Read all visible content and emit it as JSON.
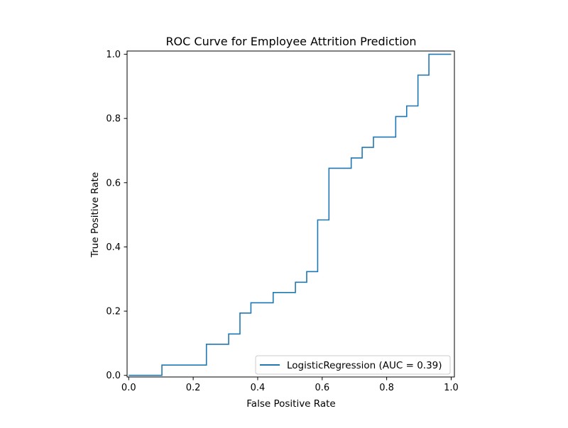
{
  "chart_data": {
    "type": "line",
    "title": "ROC Curve for Employee Attrition Prediction",
    "xlabel": "False Positive Rate",
    "ylabel": "True Positive Rate",
    "xlim": [
      -0.005,
      1.01
    ],
    "ylim": [
      -0.005,
      1.01
    ],
    "xticks": [
      {
        "value": 0.0,
        "label": "0.0"
      },
      {
        "value": 0.2,
        "label": "0.2"
      },
      {
        "value": 0.4,
        "label": "0.4"
      },
      {
        "value": 0.6,
        "label": "0.6"
      },
      {
        "value": 0.8,
        "label": "0.8"
      },
      {
        "value": 1.0,
        "label": "1.0"
      }
    ],
    "yticks": [
      {
        "value": 0.0,
        "label": "0.0"
      },
      {
        "value": 0.2,
        "label": "0.2"
      },
      {
        "value": 0.4,
        "label": "0.4"
      },
      {
        "value": 0.6,
        "label": "0.6"
      },
      {
        "value": 0.8,
        "label": "0.8"
      },
      {
        "value": 1.0,
        "label": "1.0"
      }
    ],
    "grid": false,
    "legend_position": "lower-right",
    "series": [
      {
        "name": "LogisticRegression (AUC = 0.39)",
        "color": "#1f77b4",
        "x": [
          0.0,
          0.103,
          0.103,
          0.241,
          0.241,
          0.31,
          0.31,
          0.345,
          0.345,
          0.379,
          0.379,
          0.448,
          0.448,
          0.517,
          0.517,
          0.552,
          0.552,
          0.586,
          0.586,
          0.621,
          0.621,
          0.69,
          0.69,
          0.724,
          0.724,
          0.759,
          0.759,
          0.828,
          0.828,
          0.862,
          0.862,
          0.897,
          0.897,
          0.931,
          0.931,
          1.0
        ],
        "y": [
          0.0,
          0.0,
          0.032,
          0.032,
          0.097,
          0.097,
          0.129,
          0.129,
          0.194,
          0.194,
          0.226,
          0.226,
          0.258,
          0.258,
          0.29,
          0.29,
          0.323,
          0.323,
          0.484,
          0.484,
          0.645,
          0.645,
          0.677,
          0.677,
          0.71,
          0.71,
          0.742,
          0.742,
          0.806,
          0.806,
          0.839,
          0.839,
          0.935,
          0.935,
          1.0,
          1.0
        ]
      }
    ]
  }
}
